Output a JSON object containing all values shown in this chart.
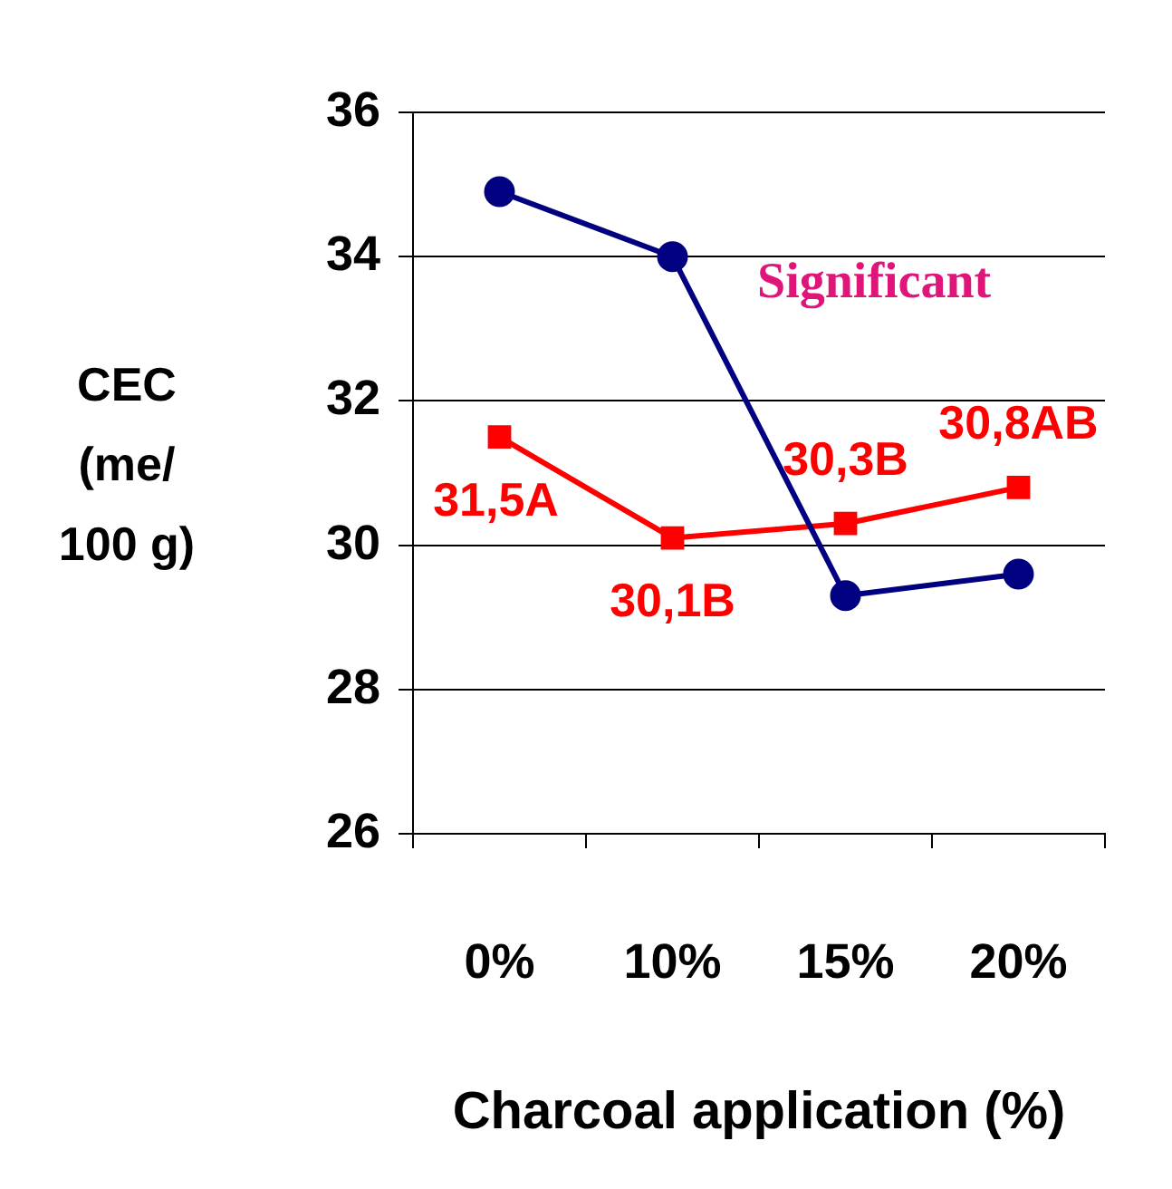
{
  "chart_data": {
    "type": "line",
    "xlabel": "Charcoal application (%)",
    "ylabel": "CEC\n(me/\n100 g)",
    "categories": [
      "0%",
      "10%",
      "15%",
      "20%"
    ],
    "series": [
      {
        "color": "#000080",
        "values": [
          34.9,
          34.0,
          29.3,
          29.6
        ],
        "marker": "circle"
      },
      {
        "color": "#ff0000",
        "values": [
          31.5,
          30.1,
          30.3,
          30.8
        ],
        "marker": "square",
        "value_labels": [
          "31,5A",
          "30,1B",
          "30,3B",
          "30,8AB"
        ]
      }
    ],
    "ylim": [
      26,
      36
    ],
    "yticks": [
      26,
      28,
      30,
      32,
      34,
      36
    ],
    "grid": "y",
    "legend": false,
    "annotations": [
      "Significant"
    ]
  }
}
